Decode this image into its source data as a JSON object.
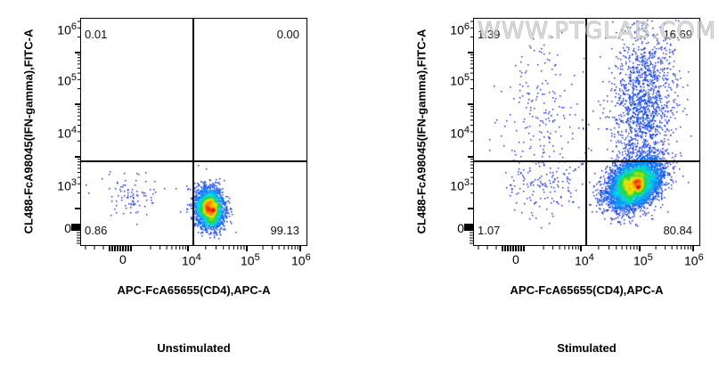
{
  "chart_data": [
    {
      "type": "scatter",
      "subtype": "flow-cytometry-density-dot-plot",
      "title": "Unstimulated",
      "xlabel": "APC-FcA65655(CD4),APC-A",
      "ylabel": "CL488-FcA98045(IFN-gamma),FITC-A",
      "x_scale": "biexponential",
      "y_scale": "biexponential",
      "x_ticks": [
        "0",
        "10^4",
        "10^5",
        "10^6"
      ],
      "y_ticks": [
        "0",
        "10^3",
        "10^4",
        "10^5",
        "10^6"
      ],
      "quadrant_gate": {
        "x": "~1.4e4",
        "y": "~8e3"
      },
      "quadrants": {
        "upper_left": "0.01",
        "upper_right": "0.00",
        "lower_left": "0.86",
        "lower_right": "99.13"
      },
      "populations": [
        {
          "name": "CD4+ IFN-gamma-",
          "cx": 0.57,
          "cy": 0.84,
          "sx": 0.032,
          "sy": 0.045,
          "n": 2600,
          "rho": 0.05
        },
        {
          "name": "CD4- scatter",
          "cx": 0.22,
          "cy": 0.78,
          "sx": 0.09,
          "sy": 0.05,
          "n": 90,
          "rho": 0.0
        }
      ],
      "watermark": ""
    },
    {
      "type": "scatter",
      "subtype": "flow-cytometry-density-dot-plot",
      "title": "Stimulated",
      "xlabel": "APC-FcA65655(CD4),APC-A",
      "ylabel": "CL488-FcA98045(IFN-gamma),FITC-A",
      "x_scale": "biexponential",
      "y_scale": "biexponential",
      "x_ticks": [
        "0",
        "10^4",
        "10^5",
        "10^6"
      ],
      "y_ticks": [
        "0",
        "10^3",
        "10^4",
        "10^5",
        "10^6"
      ],
      "quadrant_gate": {
        "x": "~1.4e4",
        "y": "~8e3"
      },
      "quadrants": {
        "upper_left": "1.39",
        "upper_right": "16.69",
        "lower_left": "1.07",
        "lower_right": "80.84"
      },
      "populations": [
        {
          "name": "CD4+ IFN-gamma-",
          "cx": 0.71,
          "cy": 0.73,
          "sx": 0.06,
          "sy": 0.055,
          "n": 5200,
          "rho": -0.35
        },
        {
          "name": "CD4+ IFN-gamma+",
          "cx": 0.75,
          "cy": 0.38,
          "sx": 0.07,
          "sy": 0.18,
          "n": 1500,
          "rho": -0.2
        },
        {
          "name": "CD4- IFN-gamma+",
          "cx": 0.3,
          "cy": 0.46,
          "sx": 0.1,
          "sy": 0.18,
          "n": 230,
          "rho": 0.0
        },
        {
          "name": "CD4- IFN-gamma-",
          "cx": 0.3,
          "cy": 0.74,
          "sx": 0.1,
          "sy": 0.06,
          "n": 110,
          "rho": 0.0
        }
      ],
      "watermark": "WWW.PTGLAB.COM"
    }
  ],
  "colors": {
    "axis": "#000000",
    "density_low": "#0000c8",
    "density_mid": "#00c8ff",
    "density_high": "#ffff00",
    "density_peak": "#ff0000"
  }
}
